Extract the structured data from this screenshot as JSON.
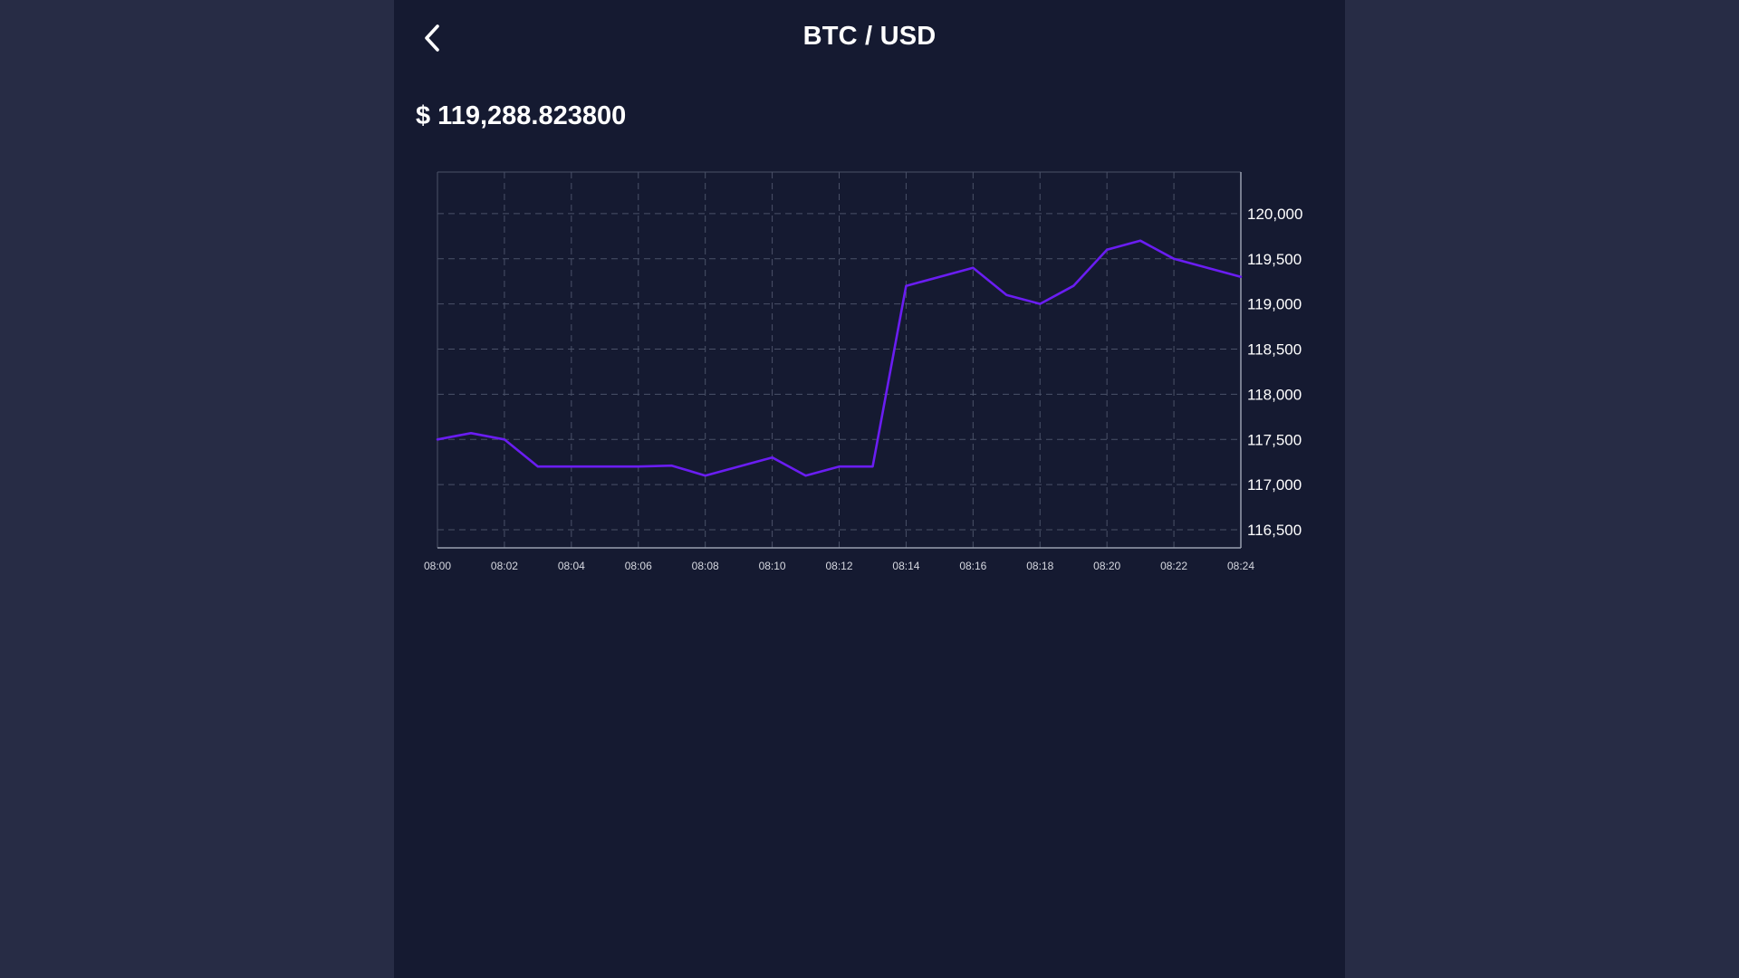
{
  "header": {
    "title": "BTC / USD",
    "back_icon": "chevron-left-icon"
  },
  "price": {
    "label": "$ 119,288.823800"
  },
  "colors": {
    "page_bg": "#272c45",
    "panel_bg": "#151a31",
    "line": "#6a1df2",
    "grid": "#4a5168",
    "axis": "#9aa0b0"
  },
  "chart_data": {
    "type": "line",
    "title": "",
    "xlabel": "",
    "ylabel": "",
    "x": [
      "08:00",
      "08:01",
      "08:02",
      "08:03",
      "08:04",
      "08:05",
      "08:06",
      "08:07",
      "08:08",
      "08:09",
      "08:10",
      "08:11",
      "08:12",
      "08:13",
      "08:14",
      "08:15",
      "08:16",
      "08:17",
      "08:18",
      "08:19",
      "08:20",
      "08:21",
      "08:22",
      "08:23",
      "08:24"
    ],
    "values": [
      117500,
      117570,
      117500,
      117200,
      117200,
      117200,
      117200,
      117210,
      117100,
      117200,
      117300,
      117100,
      117200,
      117200,
      119200,
      119300,
      119400,
      119100,
      119000,
      119200,
      119600,
      119700,
      119500,
      119400,
      119300
    ],
    "x_tick_labels": [
      "08:00",
      "08:02",
      "08:04",
      "08:06",
      "08:08",
      "08:10",
      "08:12",
      "08:14",
      "08:16",
      "08:18",
      "08:20",
      "08:22",
      "08:24"
    ],
    "y_tick_values": [
      116500,
      117000,
      117500,
      118000,
      118500,
      119000,
      119500,
      120000
    ],
    "y_tick_labels": [
      "116,500",
      "117,000",
      "117,500",
      "118,000",
      "118,500",
      "119,000",
      "119,500",
      "120,000"
    ],
    "ylim": [
      116300,
      120460
    ],
    "y_axis_position": "right",
    "grid": true,
    "grid_style": "dashed",
    "legend": false
  }
}
